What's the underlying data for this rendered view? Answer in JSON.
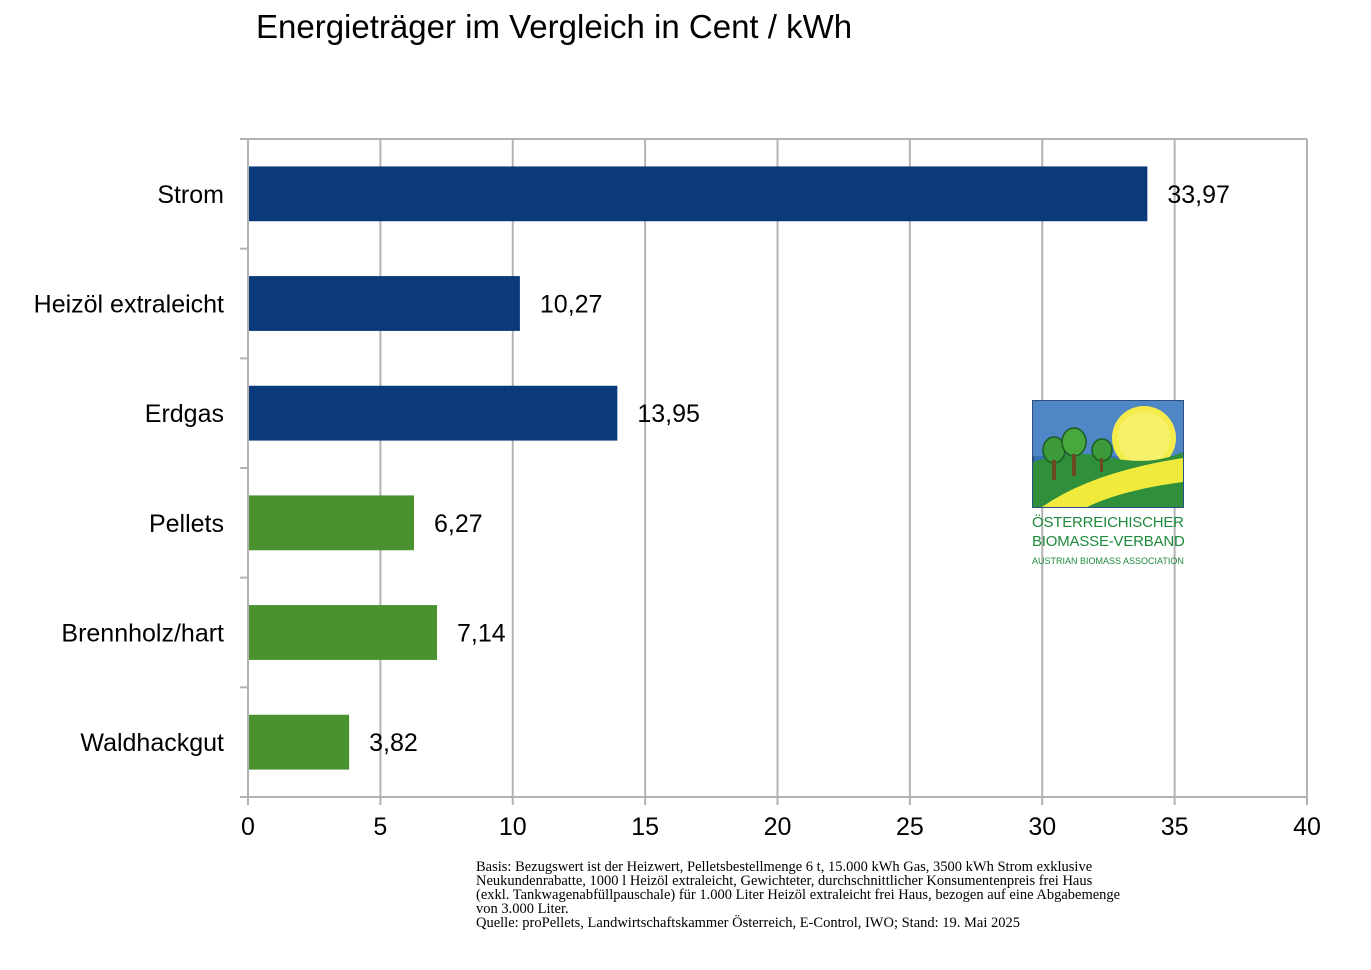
{
  "chart_data": {
    "type": "bar",
    "orientation": "horizontal",
    "title": "Energieträger im Vergleich in Cent / kWh",
    "categories": [
      "Strom",
      "Heizöl extraleicht",
      "Erdgas",
      "Pellets",
      "Brennholz/hart",
      "Waldhackgut"
    ],
    "values": [
      33.97,
      10.27,
      13.95,
      6.27,
      7.14,
      3.82
    ],
    "value_labels": [
      "33,97",
      "10,27",
      "13,95",
      "6,27",
      "7,14",
      "3,82"
    ],
    "bar_colors": [
      "#0b3a7a",
      "#0b3a7a",
      "#0b3a7a",
      "#4a9130",
      "#4a9130",
      "#4a9130"
    ],
    "xlim": [
      0,
      40
    ],
    "xticks": [
      0,
      5,
      10,
      15,
      20,
      25,
      30,
      35,
      40
    ],
    "xlabel": "",
    "ylabel": "",
    "grid": "vertical",
    "legend": "none"
  },
  "logo": {
    "line1": "ÖSTERREICHISCHER",
    "line2": "BIOMASSE-VERBAND",
    "line3": "AUSTRIAN BIOMASS ASSOCIATION"
  },
  "footnote": {
    "line1": "Basis: Bezugswert ist der Heizwert, Pelletsbestellmenge 6 t, 15.000 kWh Gas, 3500 kWh Strom exklusive",
    "line2": "Neukundenrabatte, 1000 l Heizöl extraleicht, Gewichteter, durchschnittlicher Konsumentenpreis frei Haus",
    "line3": "(exkl. Tankwagenabfüllpauschale) für 1.000 Liter Heizöl extraleicht frei Haus, bezogen auf eine Abgabemenge",
    "line4": "von 3.000 Liter.",
    "line5": "Quelle: proPellets, Landwirtschaftskammer Österreich, E-Control, IWO; Stand: 19. Mai 2025"
  }
}
